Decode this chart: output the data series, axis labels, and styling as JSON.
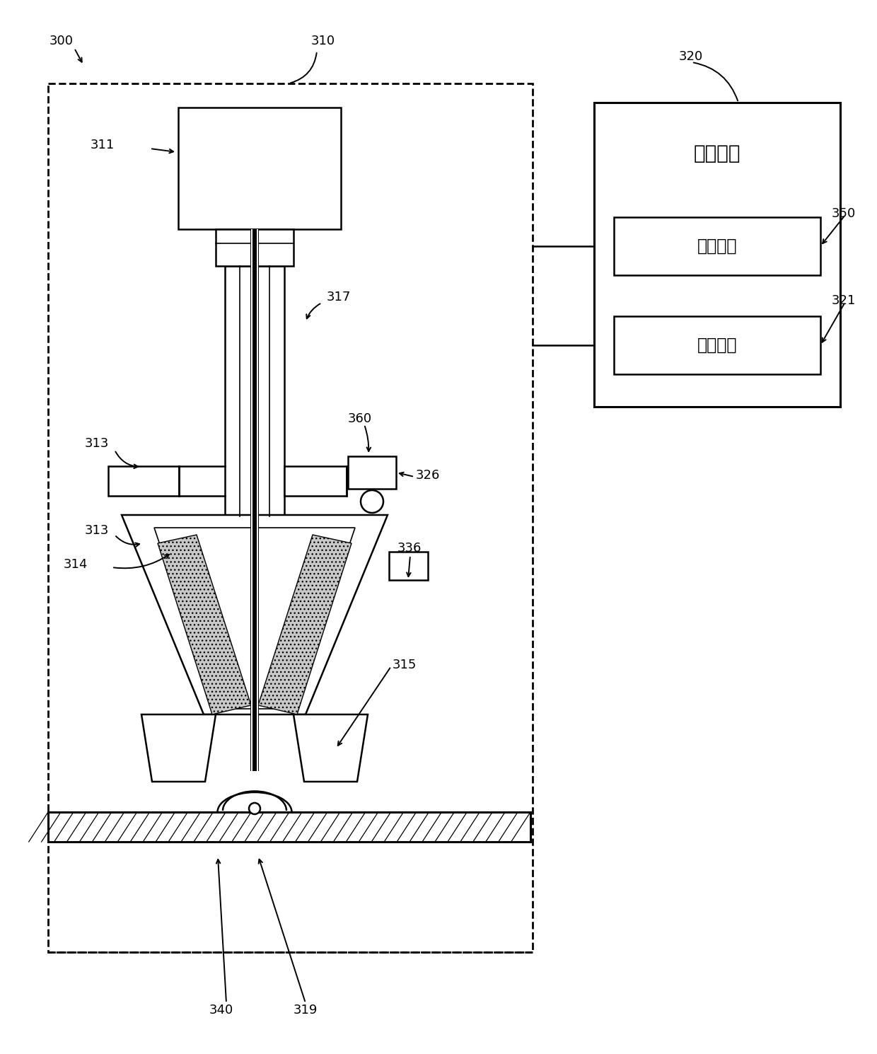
{
  "bg_color": "#ffffff",
  "label_300": "300",
  "label_310": "310",
  "label_311": "311",
  "label_313": "313",
  "label_314": "314",
  "label_315": "315",
  "label_317": "317",
  "label_319": "319",
  "label_320": "320",
  "label_321": "321",
  "label_326": "326",
  "label_336": "336",
  "label_340": "340",
  "label_350": "350",
  "label_360": "360",
  "text_control": "控制模块",
  "text_adjust": "调整模块",
  "text_storage": "存储单元",
  "fs_label": 13,
  "fs_cn_large": 20,
  "fs_cn_small": 17,
  "lw_main": 1.8,
  "lw_thick": 2.2,
  "lw_thin": 1.2
}
